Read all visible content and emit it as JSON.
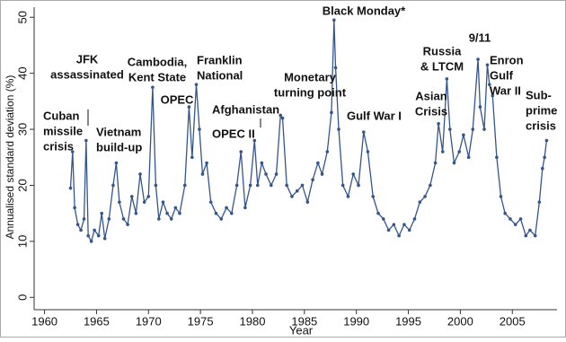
{
  "chart_data": {
    "type": "line",
    "y_label": "Annualised standard deviation (%)",
    "x_label": "Year",
    "xlim": [
      1959,
      2009.3
    ],
    "ylim": [
      -2.2,
      51.8
    ],
    "xticks": [
      1960,
      1965,
      1970,
      1975,
      1980,
      1985,
      1990,
      1995,
      2000,
      2005
    ],
    "yticks": [
      0,
      10,
      20,
      30,
      40,
      50
    ],
    "series": [
      {
        "color": "#34558b",
        "x": [
          1962.5,
          1962.7,
          1962.9,
          1963.2,
          1963.5,
          1963.8,
          1964.0,
          1964.2,
          1964.5,
          1964.8,
          1965.2,
          1965.5,
          1965.8,
          1966.2,
          1966.6,
          1966.9,
          1967.2,
          1967.6,
          1968.0,
          1968.4,
          1968.8,
          1969.2,
          1969.6,
          1970.0,
          1970.4,
          1970.7,
          1971.0,
          1971.4,
          1971.8,
          1972.2,
          1972.6,
          1973.0,
          1973.5,
          1973.9,
          1974.2,
          1974.6,
          1974.9,
          1975.2,
          1975.6,
          1976.0,
          1976.5,
          1977.0,
          1977.5,
          1978.0,
          1978.5,
          1978.9,
          1979.3,
          1979.8,
          1980.2,
          1980.5,
          1980.9,
          1981.3,
          1981.8,
          1982.3,
          1982.7,
          1982.9,
          1983.3,
          1983.8,
          1984.3,
          1984.8,
          1985.3,
          1985.8,
          1986.3,
          1986.7,
          1987.2,
          1987.6,
          1987.85,
          1988.0,
          1988.3,
          1988.7,
          1989.2,
          1989.7,
          1990.2,
          1990.7,
          1991.1,
          1991.6,
          1992.1,
          1992.6,
          1993.1,
          1993.6,
          1994.1,
          1994.6,
          1995.1,
          1995.6,
          1996.1,
          1996.6,
          1997.1,
          1997.6,
          1997.9,
          1998.3,
          1998.7,
          1999.0,
          1999.4,
          1999.9,
          2000.3,
          2000.8,
          2001.2,
          2001.7,
          2001.9,
          2002.3,
          2002.6,
          2002.8,
          2003.1,
          2003.5,
          2003.9,
          2004.3,
          2004.8,
          2005.3,
          2005.8,
          2006.3,
          2006.7,
          2007.2,
          2007.6,
          2007.9,
          2008.1,
          2008.3
        ],
        "values": [
          19.5,
          26,
          16,
          13,
          12,
          14,
          28,
          11,
          10,
          12,
          11,
          15,
          10.5,
          14,
          20,
          24,
          17,
          14,
          13,
          18,
          15,
          22,
          17,
          18,
          37.5,
          20,
          14,
          17,
          15,
          14,
          16,
          15,
          20,
          34,
          25,
          38,
          30,
          22,
          24,
          17,
          15,
          14,
          16,
          15,
          20,
          26,
          16,
          20,
          28,
          20,
          24,
          22,
          20,
          22,
          32.5,
          32,
          20,
          18,
          19,
          20,
          17,
          21,
          24,
          22,
          26,
          33,
          49.5,
          41,
          30,
          20,
          18,
          22,
          20,
          29.5,
          26,
          18,
          15,
          14,
          12,
          13,
          11,
          13,
          12,
          14,
          17,
          18,
          20,
          24,
          31,
          26,
          39,
          30,
          24,
          26,
          29,
          25,
          30,
          42.5,
          34,
          30,
          41.5,
          38,
          36,
          25,
          18,
          15,
          14,
          13,
          14,
          11,
          12,
          11,
          17,
          23,
          25,
          28
        ]
      }
    ],
    "annotations": [
      [
        "Black Monday*"
      ],
      [
        "Cuban",
        "missile",
        "crisis"
      ],
      [
        "JFK",
        "assassinated"
      ],
      [
        "Vietnam",
        "build-up"
      ],
      [
        "Cambodia,",
        "Kent State"
      ],
      [
        "OPEC"
      ],
      [
        "Franklin",
        "National"
      ],
      [
        "Afghanistan"
      ],
      [
        "OPEC II"
      ],
      [
        "Monetary",
        "turning point"
      ],
      [
        "Gulf War I"
      ],
      [
        "Asian",
        "Crisis"
      ],
      [
        "Russia",
        "& LTCM"
      ],
      [
        "9/11"
      ],
      [
        "Enron",
        "Gulf",
        "War II"
      ],
      [
        "Sub-",
        "prime",
        "crisis"
      ]
    ]
  }
}
